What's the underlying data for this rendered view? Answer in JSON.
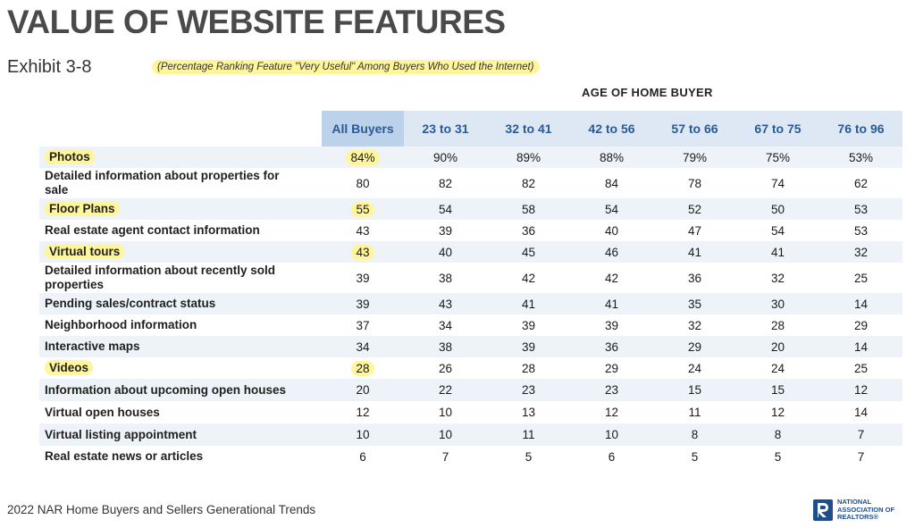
{
  "header": {
    "title": "VALUE OF WEBSITE FEATURES",
    "exhibit": "Exhibit 3-8",
    "subtitle": "(Percentage Ranking Feature \"Very Useful\" Among Buyers Who Used the Internet)",
    "group_header": "AGE OF HOME BUYER"
  },
  "chart_data": {
    "type": "table",
    "columns": [
      "All Buyers",
      "23 to 31",
      "32 to 41",
      "42 to 56",
      "57 to 66",
      "67 to 75",
      "76 to 96"
    ],
    "rows": [
      {
        "label": "Photos",
        "values": [
          "84%",
          "90%",
          "89%",
          "88%",
          "79%",
          "75%",
          "53%"
        ],
        "highlighted": true
      },
      {
        "label": "Detailed information about properties for sale",
        "values": [
          "80",
          "82",
          "82",
          "84",
          "78",
          "74",
          "62"
        ],
        "highlighted": false
      },
      {
        "label": "Floor Plans",
        "values": [
          "55",
          "54",
          "58",
          "54",
          "52",
          "50",
          "53"
        ],
        "highlighted": true
      },
      {
        "label": "Real estate agent contact information",
        "values": [
          "43",
          "39",
          "36",
          "40",
          "47",
          "54",
          "53"
        ],
        "highlighted": false
      },
      {
        "label": "Virtual tours",
        "values": [
          "43",
          "40",
          "45",
          "46",
          "41",
          "41",
          "32"
        ],
        "highlighted": true
      },
      {
        "label": "Detailed information about recently sold properties",
        "values": [
          "39",
          "38",
          "42",
          "42",
          "36",
          "32",
          "25"
        ],
        "highlighted": false
      },
      {
        "label": "Pending sales/contract status",
        "values": [
          "39",
          "43",
          "41",
          "41",
          "35",
          "30",
          "14"
        ],
        "highlighted": false
      },
      {
        "label": "Neighborhood information",
        "values": [
          "37",
          "34",
          "39",
          "39",
          "32",
          "28",
          "29"
        ],
        "highlighted": false
      },
      {
        "label": "Interactive maps",
        "values": [
          "34",
          "38",
          "39",
          "36",
          "29",
          "20",
          "14"
        ],
        "highlighted": false
      },
      {
        "label": "Videos",
        "values": [
          "28",
          "26",
          "28",
          "29",
          "24",
          "24",
          "25"
        ],
        "highlighted": true
      },
      {
        "label": "Information about upcoming open houses",
        "values": [
          "20",
          "22",
          "23",
          "23",
          "15",
          "15",
          "12"
        ],
        "highlighted": false
      },
      {
        "label": "Virtual open houses",
        "values": [
          "12",
          "10",
          "13",
          "12",
          "11",
          "12",
          "14"
        ],
        "highlighted": false
      },
      {
        "label": "Virtual listing appointment",
        "values": [
          "10",
          "10",
          "11",
          "10",
          "8",
          "8",
          "7"
        ],
        "highlighted": false
      },
      {
        "label": "Real estate news or articles",
        "values": [
          "6",
          "7",
          "5",
          "6",
          "5",
          "5",
          "7"
        ],
        "highlighted": false
      }
    ]
  },
  "footer": {
    "source": "2022 NAR Home Buyers and Sellers Generational Trends",
    "logo_lines": [
      "NATIONAL",
      "ASSOCIATION OF",
      "REALTORS®"
    ]
  },
  "colors": {
    "title": "#4a4a4a",
    "header_text": "#2a5a96",
    "header_bg": "#dde8f4",
    "all_buyers_header_bg": "#bcd2ea",
    "row_stripe": "#eef3f9",
    "highlight": "#fff59a",
    "logo": "#1f4e8c"
  }
}
